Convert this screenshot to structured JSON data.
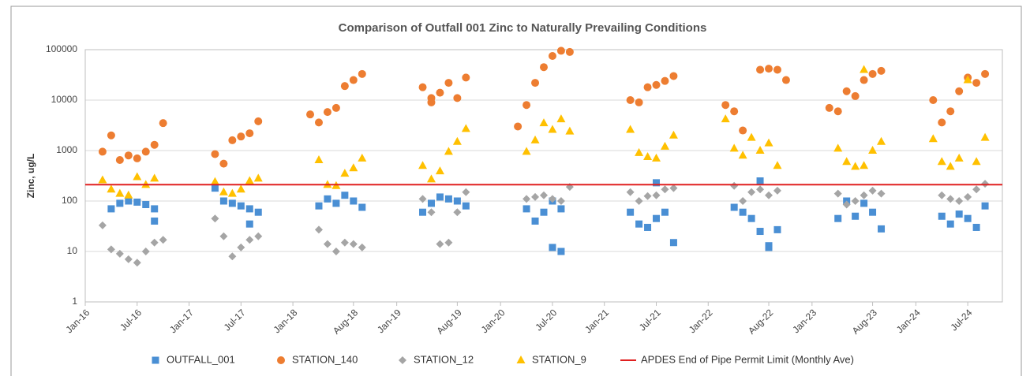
{
  "chart_data": {
    "type": "scatter",
    "title": "Comparison of Outfall 001 Zinc to Naturally Prevailing Conditions",
    "y_label": "Zinc, ug/L",
    "log_y": true,
    "grid": true,
    "legend": "bottom",
    "ylim": [
      1,
      100000
    ],
    "yticks": [
      1,
      10,
      100,
      1000,
      10000,
      100000
    ],
    "xlim": [
      "2016-01",
      "2024-11"
    ],
    "xticks": [
      {
        "value": "2016-01",
        "label": "Jan-16"
      },
      {
        "value": "2016-07",
        "label": "Jul-16"
      },
      {
        "value": "2017-01",
        "label": "Jan-17"
      },
      {
        "value": "2017-07",
        "label": "Jul-17"
      },
      {
        "value": "2018-01",
        "label": "Jan-18"
      },
      {
        "value": "2018-08",
        "label": "Aug-18"
      },
      {
        "value": "2019-01",
        "label": "Jan-19"
      },
      {
        "value": "2019-08",
        "label": "Aug-19"
      },
      {
        "value": "2020-01",
        "label": "Jan-20"
      },
      {
        "value": "2020-07",
        "label": "Jul-20"
      },
      {
        "value": "2021-01",
        "label": "Jan-21"
      },
      {
        "value": "2021-07",
        "label": "Jul-21"
      },
      {
        "value": "2022-01",
        "label": "Jan-22"
      },
      {
        "value": "2022-08",
        "label": "Aug-22"
      },
      {
        "value": "2023-01",
        "label": "Jan-23"
      },
      {
        "value": "2023-08",
        "label": "Aug-23"
      },
      {
        "value": "2024-01",
        "label": "Jan-24"
      },
      {
        "value": "2024-07",
        "label": "Jul-24"
      }
    ],
    "series": [
      {
        "name": "OUTFALL_001",
        "color": "#4a8fd4",
        "marker": "square",
        "x": [
          "2016-04",
          "2016-05",
          "2016-06",
          "2016-07",
          "2016-08",
          "2016-09",
          "2016-09",
          "2017-04",
          "2017-05",
          "2017-06",
          "2017-07",
          "2017-08",
          "2017-08",
          "2017-09",
          "2018-04",
          "2018-05",
          "2018-06",
          "2018-07",
          "2018-08",
          "2018-09",
          "2019-04",
          "2019-05",
          "2019-06",
          "2019-07",
          "2019-08",
          "2019-09",
          "2020-04",
          "2020-05",
          "2020-06",
          "2020-07",
          "2020-07",
          "2020-08",
          "2020-08",
          "2021-04",
          "2021-05",
          "2021-06",
          "2021-07",
          "2021-07",
          "2021-08",
          "2021-09",
          "2022-04",
          "2022-05",
          "2022-06",
          "2022-07",
          "2022-07",
          "2022-08",
          "2022-08",
          "2022-09",
          "2023-04",
          "2023-05",
          "2023-06",
          "2023-07",
          "2023-08",
          "2023-09",
          "2024-04",
          "2024-05",
          "2024-06",
          "2024-07",
          "2024-08",
          "2024-09"
        ],
        "values": [
          70,
          90,
          100,
          95,
          85,
          70,
          40,
          180,
          100,
          90,
          80,
          70,
          35,
          60,
          80,
          110,
          90,
          130,
          100,
          75,
          60,
          90,
          120,
          110,
          100,
          80,
          70,
          40,
          60,
          100,
          12,
          10,
          70,
          60,
          35,
          30,
          45,
          230,
          60,
          15,
          75,
          60,
          45,
          25,
          250,
          13,
          12,
          27,
          45,
          100,
          50,
          90,
          60,
          28,
          50,
          35,
          55,
          45,
          30,
          80
        ]
      },
      {
        "name": "STATION_140",
        "color": "#ed7d31",
        "marker": "circle",
        "x": [
          "2016-03",
          "2016-04",
          "2016-05",
          "2016-06",
          "2016-07",
          "2016-08",
          "2016-09",
          "2016-10",
          "2017-04",
          "2017-05",
          "2017-06",
          "2017-07",
          "2017-08",
          "2017-09",
          "2018-03",
          "2018-04",
          "2018-05",
          "2018-06",
          "2018-07",
          "2018-08",
          "2018-09",
          "2019-04",
          "2019-05",
          "2019-05",
          "2019-06",
          "2019-07",
          "2019-08",
          "2019-09",
          "2020-03",
          "2020-04",
          "2020-05",
          "2020-06",
          "2020-07",
          "2020-08",
          "2020-09",
          "2021-04",
          "2021-05",
          "2021-06",
          "2021-07",
          "2021-08",
          "2021-09",
          "2022-03",
          "2022-04",
          "2022-05",
          "2022-07",
          "2022-08",
          "2022-09",
          "2022-10",
          "2023-03",
          "2023-04",
          "2023-05",
          "2023-06",
          "2023-07",
          "2023-08",
          "2023-09",
          "2024-03",
          "2024-04",
          "2024-05",
          "2024-06",
          "2024-07",
          "2024-08",
          "2024-09"
        ],
        "values": [
          950,
          2000,
          650,
          800,
          700,
          950,
          1300,
          3500,
          850,
          550,
          1600,
          1900,
          2200,
          3800,
          5200,
          3600,
          5800,
          7000,
          19000,
          25000,
          33000,
          18000,
          11000,
          9000,
          14000,
          22000,
          11000,
          28000,
          3000,
          8000,
          22000,
          45000,
          75000,
          95000,
          90000,
          10000,
          9000,
          18000,
          20000,
          24000,
          30000,
          8000,
          6000,
          2500,
          40000,
          42000,
          40000,
          25000,
          7000,
          6000,
          15000,
          12000,
          25000,
          33000,
          38000,
          10000,
          3600,
          6000,
          15000,
          28000,
          22000,
          33000
        ]
      },
      {
        "name": "STATION_12",
        "color": "#a5a5a5",
        "marker": "diamond",
        "x": [
          "2016-03",
          "2016-04",
          "2016-05",
          "2016-06",
          "2016-07",
          "2016-08",
          "2016-09",
          "2016-10",
          "2017-04",
          "2017-05",
          "2017-06",
          "2017-07",
          "2017-08",
          "2017-09",
          "2018-04",
          "2018-05",
          "2018-06",
          "2018-07",
          "2018-08",
          "2018-09",
          "2019-04",
          "2019-05",
          "2019-06",
          "2019-07",
          "2019-08",
          "2019-09",
          "2020-04",
          "2020-05",
          "2020-06",
          "2020-07",
          "2020-08",
          "2020-09",
          "2021-04",
          "2021-05",
          "2021-06",
          "2021-07",
          "2021-08",
          "2021-09",
          "2022-04",
          "2022-05",
          "2022-06",
          "2022-07",
          "2022-08",
          "2022-09",
          "2023-04",
          "2023-05",
          "2023-06",
          "2023-07",
          "2023-08",
          "2023-09",
          "2024-04",
          "2024-05",
          "2024-06",
          "2024-07",
          "2024-08",
          "2024-09"
        ],
        "values": [
          33,
          11,
          9,
          7,
          6,
          10,
          15,
          17,
          45,
          20,
          8,
          12,
          17,
          20,
          27,
          14,
          10,
          15,
          14,
          12,
          110,
          60,
          14,
          15,
          60,
          150,
          110,
          120,
          130,
          110,
          100,
          190,
          150,
          100,
          125,
          130,
          170,
          180,
          200,
          100,
          150,
          170,
          130,
          160,
          140,
          85,
          100,
          130,
          160,
          140,
          130,
          110,
          100,
          120,
          170,
          220
        ]
      },
      {
        "name": "STATION_9",
        "color": "#ffc000",
        "marker": "triangle",
        "x": [
          "2016-03",
          "2016-04",
          "2016-05",
          "2016-06",
          "2016-07",
          "2016-08",
          "2016-09",
          "2017-04",
          "2017-05",
          "2017-06",
          "2017-07",
          "2017-08",
          "2017-09",
          "2018-04",
          "2018-05",
          "2018-06",
          "2018-07",
          "2018-08",
          "2018-09",
          "2019-04",
          "2019-05",
          "2019-06",
          "2019-07",
          "2019-08",
          "2019-09",
          "2020-04",
          "2020-05",
          "2020-06",
          "2020-07",
          "2020-08",
          "2020-09",
          "2021-04",
          "2021-05",
          "2021-06",
          "2021-07",
          "2021-08",
          "2021-09",
          "2022-03",
          "2022-04",
          "2022-05",
          "2022-06",
          "2022-07",
          "2022-08",
          "2022-09",
          "2023-04",
          "2023-05",
          "2023-06",
          "2023-07",
          "2023-07",
          "2023-08",
          "2023-09",
          "2024-03",
          "2024-04",
          "2024-05",
          "2024-06",
          "2024-07",
          "2024-08",
          "2024-09"
        ],
        "values": [
          260,
          170,
          140,
          130,
          300,
          210,
          280,
          240,
          150,
          140,
          170,
          250,
          280,
          650,
          210,
          200,
          350,
          450,
          700,
          500,
          270,
          390,
          950,
          1500,
          2700,
          950,
          1600,
          3500,
          2600,
          4200,
          2400,
          2600,
          900,
          750,
          700,
          1200,
          2000,
          4200,
          1100,
          800,
          1800,
          1000,
          1400,
          500,
          1100,
          600,
          480,
          500,
          40000,
          1000,
          1500,
          1700,
          600,
          480,
          700,
          25000,
          600,
          1800
        ]
      }
    ],
    "hline": {
      "name": "APDES End of Pipe Permit Limit (Monthly Ave)",
      "color": "#e02020",
      "value": 211
    }
  }
}
